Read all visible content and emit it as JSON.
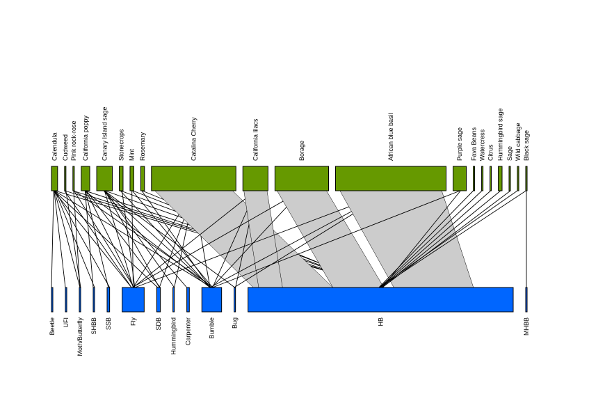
{
  "colors": {
    "higher": "#669900",
    "lower": "#0066ff",
    "link_fill": "#cccccc",
    "link_stroke": "#000000"
  },
  "higher_level": [
    {
      "name": "Calendula",
      "weight": 2
    },
    {
      "name": "Cudweed",
      "weight": 0
    },
    {
      "name": "Pink rock-rose",
      "weight": 0
    },
    {
      "name": "California poppy",
      "weight": 3
    },
    {
      "name": "Canary Island sage",
      "weight": 6
    },
    {
      "name": "Stonecrops",
      "weight": 1
    },
    {
      "name": "Mint",
      "weight": 1
    },
    {
      "name": "Rosemary",
      "weight": 1
    },
    {
      "name": "Catalina Cherry",
      "weight": 35
    },
    {
      "name": "California lilacs",
      "weight": 10
    },
    {
      "name": "Borage",
      "weight": 22
    },
    {
      "name": "African blue basil",
      "weight": 46
    },
    {
      "name": "Purple sage",
      "weight": 5
    },
    {
      "name": "Fava Beans",
      "weight": 0
    },
    {
      "name": "Watercress",
      "weight": 0
    },
    {
      "name": "Citrus",
      "weight": 0
    },
    {
      "name": "Hummingbird sage",
      "weight": 1
    },
    {
      "name": "Sage",
      "weight": 0
    },
    {
      "name": "Wild cabbage",
      "weight": 0
    },
    {
      "name": "Black sage",
      "weight": 0
    }
  ],
  "lower_level": [
    {
      "name": "Beetle",
      "weight": 0
    },
    {
      "name": "UFI",
      "weight": 0
    },
    {
      "name": "Moth/Butterfly",
      "weight": 0
    },
    {
      "name": "SHBB",
      "weight": 0
    },
    {
      "name": "SSB",
      "weight": 0.5
    },
    {
      "name": "Fly",
      "weight": 9
    },
    {
      "name": "SDB",
      "weight": 1
    },
    {
      "name": "Hummingbird",
      "weight": 0
    },
    {
      "name": "Carpenter",
      "weight": 0.5
    },
    {
      "name": "Bumble",
      "weight": 8
    },
    {
      "name": "Bug",
      "weight": 0
    },
    {
      "name": "HB",
      "weight": 115
    },
    {
      "name": "MHBB",
      "weight": 0
    }
  ],
  "interactions": [
    [
      "Calendula",
      "Beetle"
    ],
    [
      "Calendula",
      "UFI"
    ],
    [
      "Calendula",
      "Moth/Butterfly"
    ],
    [
      "Calendula",
      "SHBB"
    ],
    [
      "Calendula",
      "SSB"
    ],
    [
      "Calendula",
      "Fly"
    ],
    [
      "Calendula",
      "SDB"
    ],
    [
      "Calendula",
      "Bumble"
    ],
    [
      "Calendula",
      "HB"
    ],
    [
      "Cudweed",
      "Moth/Butterfly"
    ],
    [
      "Cudweed",
      "Fly"
    ],
    [
      "Cudweed",
      "HB"
    ],
    [
      "Pink rock-rose",
      "Moth/Butterfly"
    ],
    [
      "Pink rock-rose",
      "Fly"
    ],
    [
      "Pink rock-rose",
      "Bumble"
    ],
    [
      "Pink rock-rose",
      "HB"
    ],
    [
      "California poppy",
      "SHBB"
    ],
    [
      "California poppy",
      "SSB"
    ],
    [
      "California poppy",
      "Fly"
    ],
    [
      "California poppy",
      "SDB"
    ],
    [
      "California poppy",
      "Bumble"
    ],
    [
      "California poppy",
      "HB"
    ],
    [
      "Canary Island sage",
      "Fly"
    ],
    [
      "Canary Island sage",
      "SDB"
    ],
    [
      "Canary Island sage",
      "Hummingbird"
    ],
    [
      "Canary Island sage",
      "Carpenter"
    ],
    [
      "Canary Island sage",
      "Bumble"
    ],
    [
      "Canary Island sage",
      "Bug"
    ],
    [
      "Canary Island sage",
      "HB"
    ],
    [
      "Stonecrops",
      "Fly"
    ],
    [
      "Stonecrops",
      "Bumble"
    ],
    [
      "Stonecrops",
      "HB"
    ],
    [
      "Mint",
      "Fly"
    ],
    [
      "Mint",
      "Bumble"
    ],
    [
      "Mint",
      "HB"
    ],
    [
      "Rosemary",
      "Bumble"
    ],
    [
      "Rosemary",
      "HB"
    ],
    [
      "Catalina Cherry",
      "Fly"
    ],
    [
      "Catalina Cherry",
      "SDB"
    ],
    [
      "Catalina Cherry",
      "Hummingbird"
    ],
    [
      "Catalina Cherry",
      "Bumble"
    ],
    [
      "Catalina Cherry",
      "HB"
    ],
    [
      "California lilacs",
      "Fly"
    ],
    [
      "California lilacs",
      "Bumble"
    ],
    [
      "California lilacs",
      "Bug"
    ],
    [
      "California lilacs",
      "HB"
    ],
    [
      "Borage",
      "Fly"
    ],
    [
      "Borage",
      "Bumble"
    ],
    [
      "Borage",
      "HB"
    ],
    [
      "African blue basil",
      "Fly"
    ],
    [
      "African blue basil",
      "Bumble"
    ],
    [
      "African blue basil",
      "Bug"
    ],
    [
      "African blue basil",
      "HB"
    ],
    [
      "Purple sage",
      "Bumble"
    ],
    [
      "Purple sage",
      "HB"
    ],
    [
      "Fava Beans",
      "HB"
    ],
    [
      "Watercress",
      "HB"
    ],
    [
      "Citrus",
      "HB"
    ],
    [
      "Hummingbird sage",
      "HB"
    ],
    [
      "Sage",
      "HB"
    ],
    [
      "Wild cabbage",
      "HB"
    ],
    [
      "Black sage",
      "HB"
    ],
    [
      "Black sage",
      "MHBB"
    ]
  ]
}
